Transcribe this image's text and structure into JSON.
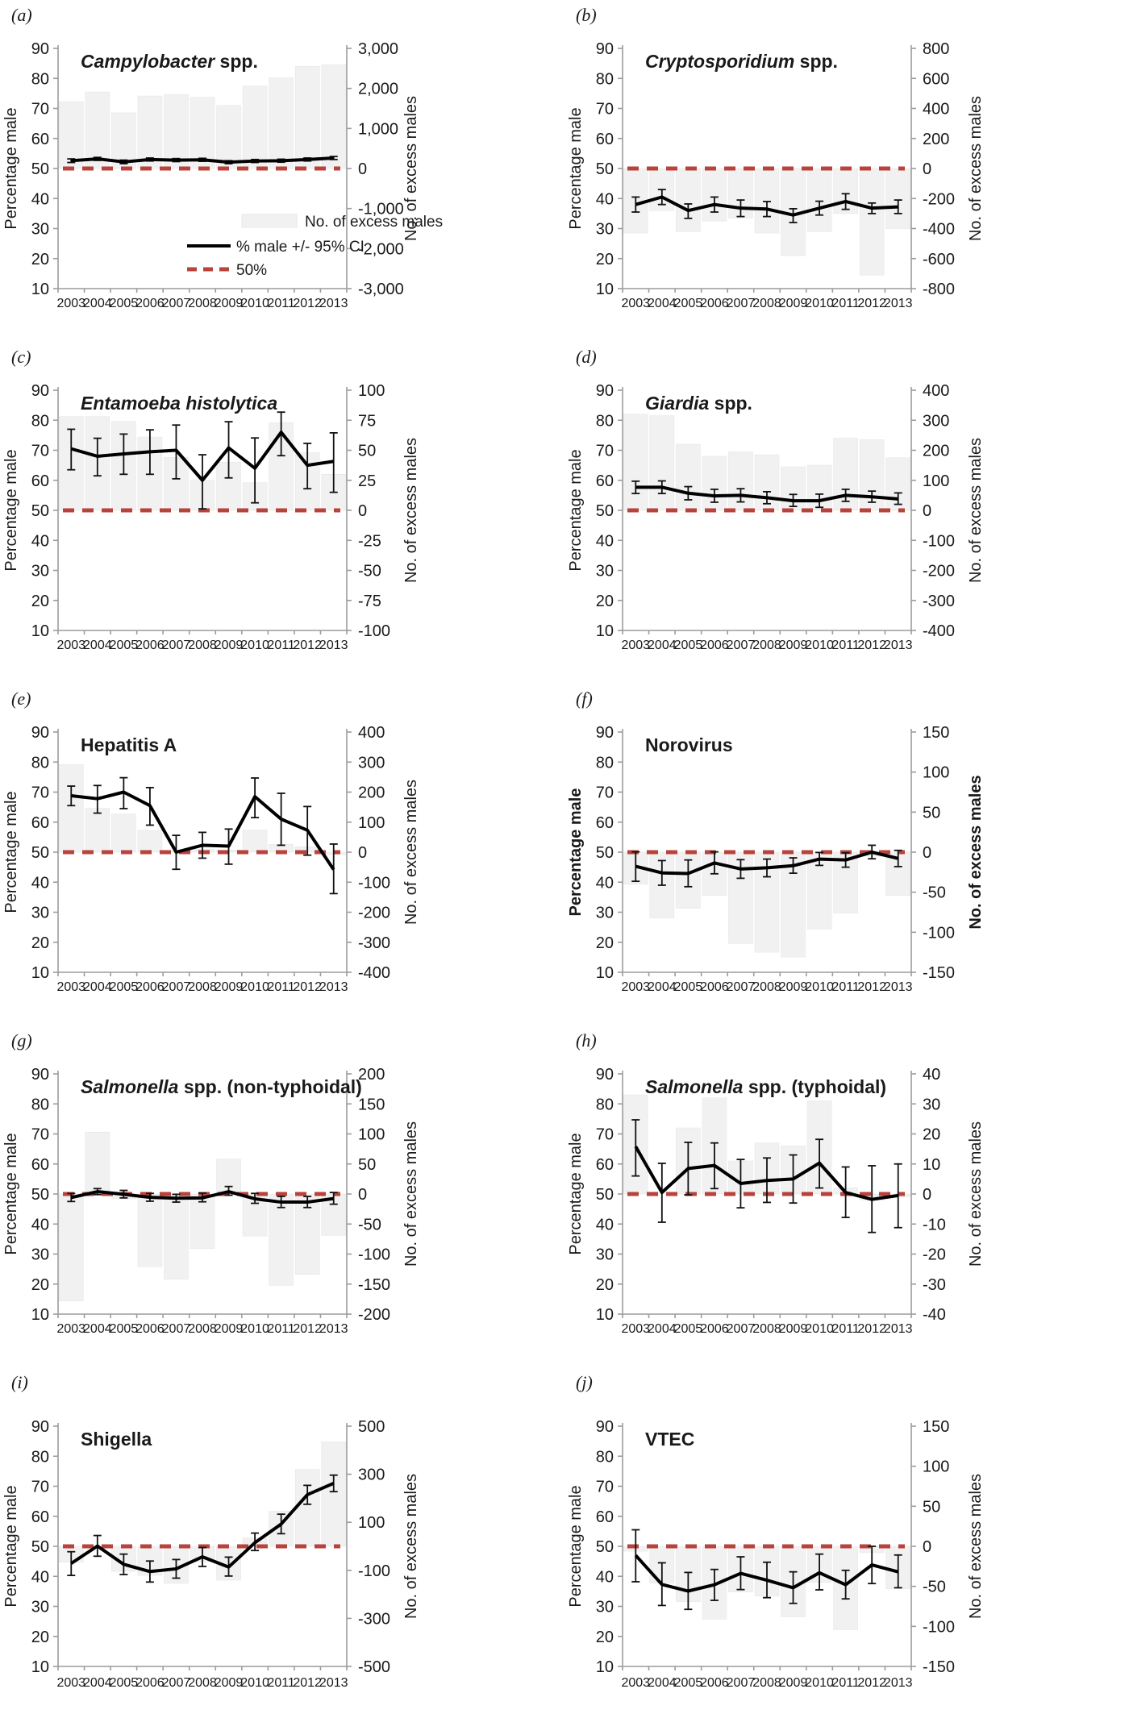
{
  "figure": {
    "left_axis_label": "Percentage male",
    "right_axis_label": "No. of excess males",
    "years": [
      "2003",
      "2004",
      "2005",
      "2006",
      "2007",
      "2008",
      "2009",
      "2010",
      "2011",
      "2012",
      "2013"
    ],
    "left_ticks": [
      90,
      80,
      70,
      60,
      50,
      40,
      30,
      20,
      10
    ],
    "reference_value_pct": 50,
    "colors": {
      "bar": "#f1f1f1",
      "bar_edge": "#e7e7e7",
      "line": "#111111",
      "reference": "#b8433c",
      "axis": "#9c9c9c"
    },
    "legend": {
      "items": [
        {
          "label": "No. of excess males",
          "marker": "bar-swatch"
        },
        {
          "label": "% male +/- 95% CI",
          "marker": "solid-line"
        },
        {
          "label": "50%",
          "marker": "red-dash"
        }
      ]
    }
  },
  "chart_data": [
    {
      "panel_label": "(a)",
      "type": "bar+line+errorbar",
      "title_italic": "Campylobacter",
      "title_regular": " spp.",
      "show_legend": true,
      "bold_axis_labels": false,
      "right_axis": {
        "min": -3000,
        "max": 3000,
        "ticks": [
          {
            "v": 3000,
            "label": "3,000"
          },
          {
            "v": 2000,
            "label": "2,000"
          },
          {
            "v": 1000,
            "label": "1,000"
          },
          {
            "v": 0,
            "label": "0"
          },
          {
            "v": -1000,
            "label": "-1,000"
          },
          {
            "v": -2000,
            "label": "-2,000"
          },
          {
            "v": -3000,
            "label": "-3,000"
          }
        ]
      },
      "bars_no_of_excess_males": [
        1670,
        1910,
        1390,
        1810,
        1850,
        1780,
        1575,
        2060,
        2265,
        2550,
        2590
      ],
      "line_pct_male": [
        52.6,
        53.2,
        52.2,
        53.0,
        52.8,
        52.9,
        52.1,
        52.5,
        52.6,
        53.0,
        53.5
      ],
      "ci_low": [
        52.0,
        52.7,
        51.6,
        52.5,
        52.3,
        52.4,
        51.6,
        52.0,
        52.1,
        52.5,
        53.0
      ],
      "ci_high": [
        53.2,
        53.7,
        52.8,
        53.5,
        53.3,
        53.4,
        52.6,
        53.0,
        53.1,
        53.5,
        54.0
      ]
    },
    {
      "panel_label": "(b)",
      "type": "bar+line+errorbar",
      "title_italic": "Cryptosporidium",
      "title_regular": " spp.",
      "show_legend": false,
      "bold_axis_labels": false,
      "right_axis": {
        "min": -800,
        "max": 800,
        "ticks": [
          {
            "v": 800,
            "label": "800"
          },
          {
            "v": 600,
            "label": "600"
          },
          {
            "v": 400,
            "label": "400"
          },
          {
            "v": 200,
            "label": "200"
          },
          {
            "v": 0,
            "label": "0"
          },
          {
            "v": -200,
            "label": "-200"
          },
          {
            "v": -400,
            "label": "-400"
          },
          {
            "v": -600,
            "label": "-600"
          },
          {
            "v": -800,
            "label": "-800"
          }
        ]
      },
      "bars_no_of_excess_males": [
        -430,
        -280,
        -420,
        -350,
        -330,
        -430,
        -580,
        -420,
        -300,
        -710,
        -400
      ],
      "line_pct_male": [
        38.0,
        40.5,
        36.0,
        38.0,
        36.8,
        36.5,
        34.5,
        36.8,
        39.0,
        36.8,
        37.2
      ],
      "ci_low": [
        35.5,
        38.0,
        33.4,
        35.5,
        34.0,
        34.0,
        32.0,
        34.5,
        36.4,
        35.0,
        35.0
      ],
      "ci_high": [
        40.5,
        43.0,
        38.2,
        40.5,
        39.5,
        39.0,
        36.6,
        39.1,
        41.6,
        38.5,
        39.5
      ]
    },
    {
      "panel_label": "(c)",
      "type": "bar+line+errorbar",
      "title_italic": "Entamoeba histolytica",
      "title_regular": "",
      "show_legend": false,
      "bold_axis_labels": false,
      "right_axis": {
        "min": -100,
        "max": 100,
        "ticks": [
          {
            "v": 100,
            "label": "100"
          },
          {
            "v": 75,
            "label": "75"
          },
          {
            "v": 50,
            "label": "50"
          },
          {
            "v": 25,
            "label": "25"
          },
          {
            "v": 0,
            "label": "0"
          },
          {
            "v": -25,
            "label": "-25"
          },
          {
            "v": -50,
            "label": "-50"
          },
          {
            "v": -75,
            "label": "-75"
          },
          {
            "v": -100,
            "label": "-100"
          }
        ]
      },
      "bars_no_of_excess_males": [
        78,
        78,
        74,
        61,
        44,
        25,
        40,
        23,
        73,
        48,
        30
      ],
      "line_pct_male": [
        70.5,
        68.0,
        68.8,
        69.5,
        70.0,
        60.0,
        70.8,
        64.0,
        76.0,
        65.0,
        66.3
      ],
      "ci_low": [
        63.5,
        61.5,
        62.0,
        62.0,
        60.5,
        50.5,
        60.8,
        52.5,
        68.2,
        57.2,
        56.0
      ],
      "ci_high": [
        77.0,
        74.0,
        75.4,
        76.8,
        78.4,
        68.5,
        79.5,
        74.1,
        82.7,
        72.3,
        75.8
      ]
    },
    {
      "panel_label": "(d)",
      "type": "bar+line+errorbar",
      "title_italic": "Giardia",
      "title_regular": " spp.",
      "show_legend": false,
      "bold_axis_labels": false,
      "right_axis": {
        "min": -400,
        "max": 400,
        "ticks": [
          {
            "v": 400,
            "label": "400"
          },
          {
            "v": 300,
            "label": "300"
          },
          {
            "v": 200,
            "label": "200"
          },
          {
            "v": 100,
            "label": "100"
          },
          {
            "v": 0,
            "label": "0"
          },
          {
            "v": -100,
            "label": "-100"
          },
          {
            "v": -200,
            "label": "-200"
          },
          {
            "v": -300,
            "label": "-300"
          },
          {
            "v": -400,
            "label": "-400"
          }
        ]
      },
      "bars_no_of_excess_males": [
        320,
        315,
        220,
        180,
        195,
        185,
        145,
        150,
        240,
        235,
        175
      ],
      "line_pct_male": [
        57.7,
        57.7,
        55.7,
        54.8,
        55.0,
        54.2,
        53.2,
        53.2,
        55.0,
        54.5,
        53.8
      ],
      "ci_low": [
        55.6,
        55.6,
        53.5,
        52.7,
        52.8,
        52.2,
        51.3,
        51.0,
        53.0,
        52.7,
        52.0
      ],
      "ci_high": [
        59.7,
        59.8,
        57.9,
        57.0,
        57.2,
        56.2,
        55.3,
        55.4,
        57.0,
        56.4,
        55.8
      ]
    },
    {
      "panel_label": "(e)",
      "type": "bar+line+errorbar",
      "title_italic": "",
      "title_regular": "Hepatitis A",
      "show_legend": false,
      "bold_axis_labels": false,
      "right_axis": {
        "min": -400,
        "max": 400,
        "ticks": [
          {
            "v": 400,
            "label": "400"
          },
          {
            "v": 300,
            "label": "300"
          },
          {
            "v": 200,
            "label": "200"
          },
          {
            "v": 100,
            "label": "100"
          },
          {
            "v": 0,
            "label": "0"
          },
          {
            "v": -100,
            "label": "-100"
          },
          {
            "v": -200,
            "label": "-200"
          },
          {
            "v": -300,
            "label": "-300"
          },
          {
            "v": -400,
            "label": "-400"
          }
        ]
      },
      "bars_no_of_excess_males": [
        292,
        146,
        127,
        73,
        3,
        10,
        7,
        73,
        26,
        18,
        -8
      ],
      "line_pct_male": [
        68.8,
        67.8,
        70.0,
        65.5,
        50.0,
        52.3,
        52.0,
        68.5,
        61.0,
        57.3,
        44.2
      ],
      "ci_low": [
        65.5,
        63.0,
        64.5,
        59.0,
        44.3,
        48.0,
        46.0,
        61.5,
        52.3,
        49.0,
        36.2
      ],
      "ci_high": [
        72.0,
        72.2,
        74.8,
        71.5,
        55.6,
        56.6,
        57.7,
        74.7,
        69.6,
        65.2,
        52.7
      ]
    },
    {
      "panel_label": "(f)",
      "type": "bar+line+errorbar",
      "title_italic": "",
      "title_regular": "Norovirus",
      "show_legend": false,
      "bold_axis_labels": true,
      "right_axis": {
        "min": -150,
        "max": 150,
        "ticks": [
          {
            "v": 150,
            "label": "150"
          },
          {
            "v": 100,
            "label": "100"
          },
          {
            "v": 50,
            "label": "50"
          },
          {
            "v": 0,
            "label": "0"
          },
          {
            "v": -50,
            "label": "-50"
          },
          {
            "v": -100,
            "label": "-100"
          },
          {
            "v": -150,
            "label": "-150"
          }
        ]
      },
      "bars_no_of_excess_males": [
        -40,
        -82,
        -70,
        -54,
        -114,
        -125,
        -131,
        -96,
        -76,
        -5,
        -54
      ],
      "line_pct_male": [
        45.3,
        43.1,
        42.9,
        46.4,
        44.4,
        44.8,
        45.5,
        47.7,
        47.4,
        50.0,
        47.9
      ],
      "ci_low": [
        40.3,
        39.0,
        38.5,
        42.8,
        41.3,
        41.8,
        43.0,
        45.6,
        45.0,
        47.8,
        45.2
      ],
      "ci_high": [
        50.1,
        47.2,
        47.4,
        50.1,
        47.5,
        47.7,
        48.1,
        49.9,
        49.8,
        52.3,
        50.6
      ]
    },
    {
      "panel_label": "(g)",
      "type": "bar+line+errorbar",
      "title_italic": "Salmonella",
      "title_regular": " spp. (non-typhoidal)",
      "show_legend": false,
      "bold_axis_labels": false,
      "right_axis": {
        "min": -200,
        "max": 200,
        "ticks": [
          {
            "v": 200,
            "label": "200"
          },
          {
            "v": 150,
            "label": "150"
          },
          {
            "v": 100,
            "label": "100"
          },
          {
            "v": 50,
            "label": "50"
          },
          {
            "v": 0,
            "label": "0"
          },
          {
            "v": -50,
            "label": "-50"
          },
          {
            "v": -100,
            "label": "-100"
          },
          {
            "v": -150,
            "label": "-150"
          },
          {
            "v": -200,
            "label": "-200"
          }
        ]
      },
      "bars_no_of_excess_males": [
        -178,
        103,
        -8,
        -121,
        -142,
        -91,
        58,
        -70,
        -152,
        -134,
        -69
      ],
      "line_pct_male": [
        48.8,
        50.8,
        49.9,
        48.9,
        48.6,
        48.7,
        50.8,
        48.4,
        47.3,
        47.3,
        48.5
      ],
      "ci_low": [
        47.5,
        49.8,
        48.7,
        47.6,
        47.3,
        47.4,
        49.6,
        46.9,
        45.5,
        45.5,
        46.6
      ],
      "ci_high": [
        50.2,
        51.8,
        51.2,
        50.2,
        49.9,
        50.3,
        52.5,
        50.2,
        49.2,
        49.2,
        50.5
      ]
    },
    {
      "panel_label": "(h)",
      "type": "bar+line+errorbar",
      "title_italic": "Salmonella",
      "title_regular": " spp. (typhoidal)",
      "show_legend": false,
      "bold_axis_labels": false,
      "right_axis": {
        "min": -40,
        "max": 40,
        "ticks": [
          {
            "v": 40,
            "label": "40"
          },
          {
            "v": 30,
            "label": "30"
          },
          {
            "v": 20,
            "label": "20"
          },
          {
            "v": 10,
            "label": "10"
          },
          {
            "v": 0,
            "label": "0"
          },
          {
            "v": -10,
            "label": "-10"
          },
          {
            "v": -20,
            "label": "-20"
          },
          {
            "v": -30,
            "label": "-30"
          },
          {
            "v": -40,
            "label": "-40"
          }
        ]
      },
      "bars_no_of_excess_males": [
        33,
        0,
        22,
        32,
        11,
        17,
        16,
        31,
        2,
        -2,
        -1
      ],
      "line_pct_male": [
        65.8,
        50.5,
        58.5,
        59.5,
        53.5,
        54.5,
        55.0,
        60.3,
        50.5,
        48.2,
        49.5
      ],
      "ci_low": [
        56.0,
        40.6,
        49.7,
        51.8,
        45.4,
        47.2,
        47.0,
        52.0,
        42.2,
        37.2,
        38.8
      ],
      "ci_high": [
        74.7,
        60.2,
        67.2,
        67.0,
        61.5,
        62.0,
        63.0,
        68.2,
        59.0,
        59.4,
        60.0
      ]
    },
    {
      "panel_label": "(i)",
      "type": "bar+line+errorbar",
      "title_italic": "",
      "title_regular": "Shigella",
      "show_legend": false,
      "bold_axis_labels": false,
      "right_axis": {
        "min": -500,
        "max": 500,
        "ticks": [
          {
            "v": 500,
            "label": "500"
          },
          {
            "v": 300,
            "label": "300"
          },
          {
            "v": 100,
            "label": "100"
          },
          {
            "v": -100,
            "label": "-100"
          },
          {
            "v": -300,
            "label": "-300"
          },
          {
            "v": -500,
            "label": "-500"
          }
        ]
      },
      "bars_no_of_excess_males": [
        -66,
        0,
        -104,
        -121,
        -154,
        -65,
        -141,
        35,
        146,
        320,
        435
      ],
      "line_pct_male": [
        44.3,
        50.1,
        44.0,
        41.6,
        42.5,
        46.5,
        43.1,
        51.2,
        57.4,
        67.2,
        71.0
      ],
      "ci_low": [
        40.3,
        46.7,
        40.6,
        38.1,
        39.4,
        43.3,
        40.1,
        48.6,
        54.2,
        64.0,
        68.2
      ],
      "ci_high": [
        48.2,
        53.6,
        47.4,
        45.1,
        45.6,
        49.6,
        46.4,
        54.4,
        60.7,
        70.3,
        73.7
      ]
    },
    {
      "panel_label": "(j)",
      "type": "bar+line+errorbar",
      "title_italic": "",
      "title_regular": "VTEC",
      "show_legend": false,
      "bold_axis_labels": false,
      "right_axis": {
        "min": -150,
        "max": 150,
        "ticks": [
          {
            "v": 150,
            "label": "150"
          },
          {
            "v": 100,
            "label": "100"
          },
          {
            "v": 50,
            "label": "50"
          },
          {
            "v": 0,
            "label": "0"
          },
          {
            "v": -50,
            "label": "-50"
          },
          {
            "v": -100,
            "label": "-100"
          },
          {
            "v": -150,
            "label": "-150"
          }
        ]
      },
      "bars_no_of_excess_males": [
        -6,
        -46,
        -69,
        -91,
        -57,
        -62,
        -88,
        -45,
        -104,
        -8,
        -53
      ],
      "line_pct_male": [
        47.0,
        37.3,
        35.1,
        37.2,
        41.0,
        38.7,
        36.2,
        41.2,
        37.2,
        43.8,
        41.5
      ],
      "ci_low": [
        38.2,
        30.3,
        29.0,
        32.0,
        35.6,
        32.9,
        31.0,
        35.5,
        32.5,
        37.6,
        36.2
      ],
      "ci_high": [
        55.5,
        44.5,
        41.3,
        42.3,
        46.5,
        44.7,
        41.5,
        47.4,
        42.0,
        50.0,
        47.1
      ]
    }
  ]
}
